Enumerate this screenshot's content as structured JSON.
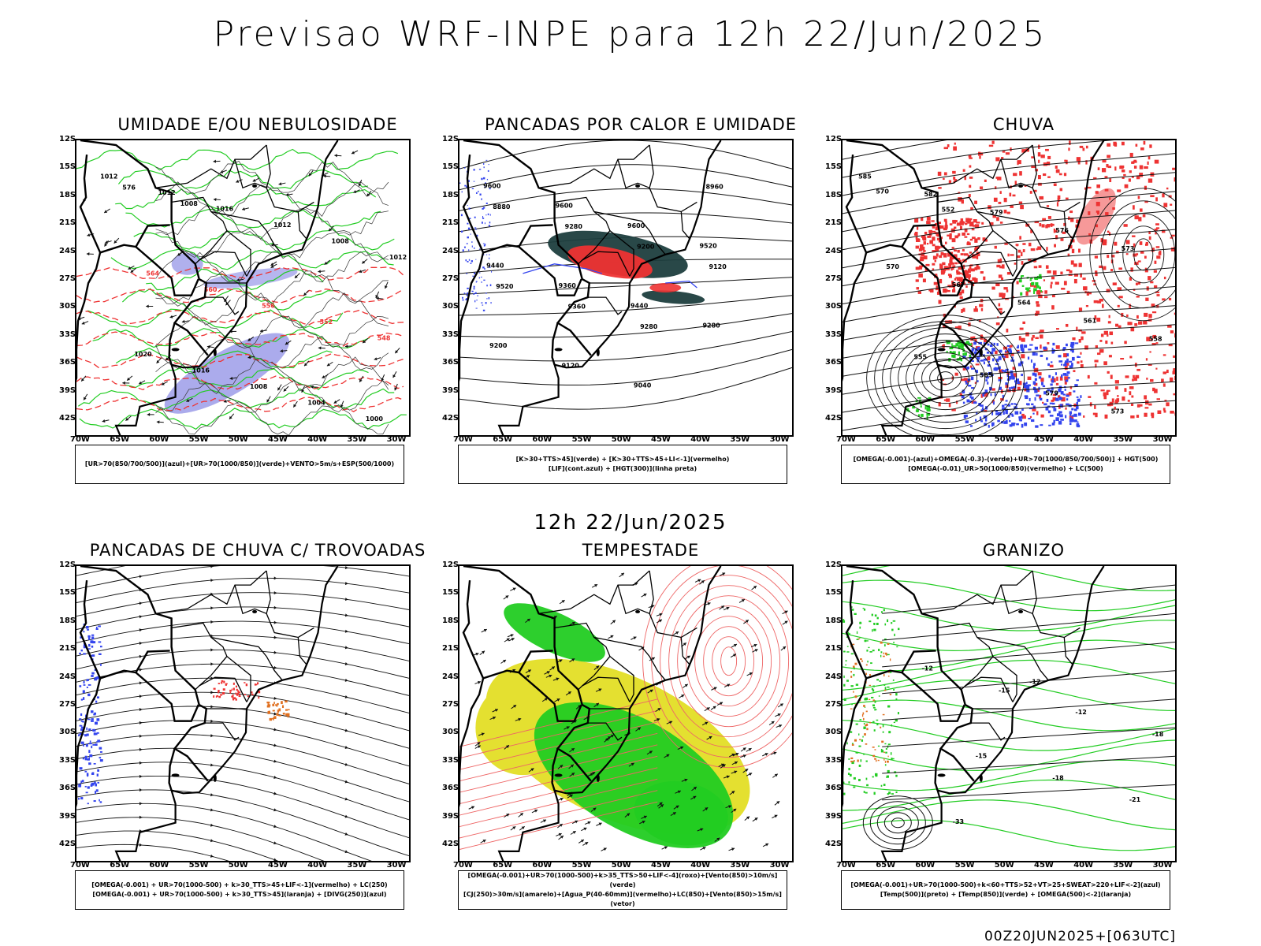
{
  "title": "Previsao WRF-INPE  para 12h 22/Jun/2025",
  "subtitle": "12h 22/Jun/2025",
  "footer": "00Z20JUN2025+[063UTC]",
  "lat_labels": [
    "12S",
    "15S",
    "18S",
    "21S",
    "24S",
    "27S",
    "30S",
    "33S",
    "36S",
    "39S",
    "42S"
  ],
  "lon_labels": [
    "70W",
    "65W",
    "60W",
    "55W",
    "50W",
    "45W",
    "40W",
    "35W",
    "30W"
  ],
  "panels": [
    {
      "title": "UMIDADE E/OU NEBULOSIDADE",
      "legend": [
        "[UR>70(850/700/500)](azul)+[UR>70(1000/850)](verde)+VENTO>5m/s+ESP(500/1000)"
      ]
    },
    {
      "title": "PANCADAS POR CALOR E UMIDADE",
      "legend": [
        "[K>30+TTS>45](verde) + [K>30+TTS>45+LI<-1](vermelho)",
        "[LIF](cont.azul) + [HGT(300)](linha preta)"
      ]
    },
    {
      "title": "CHUVA",
      "legend": [
        "[OMEGA(-0.001)-(azul)+OMEGA(-0.3)-(verde)+UR>70(1000/850/700/500)] + HGT(500)",
        "[OMEGA(-0.01)_UR>50(1000/850)(vermelho) + LC(500)"
      ]
    },
    {
      "title": "PANCADAS DE CHUVA C/ TROVOADAS",
      "legend": [
        "[OMEGA(-0.001) + UR>70(1000-500) + k>30_TTS>45+LIF<-1](vermelho) + LC(250)",
        "[OMEGA(-0.001) + UR>70(1000-500) + k>30_TTS>45](laranja) + [DIVG(250)](azul)"
      ]
    },
    {
      "title": "TEMPESTADE",
      "legend": [
        "[OMEGA(-0.001)+UR>70(1000-500)+k>35_TTS>50+LIF<-4](roxo)+[Vento(850)>10m/s](verde)",
        "[CJ(250)>30m/s](amarelo)+[Agua_P(40-60mm)](vermelho)+LC(850)+[Vento(850)>15m/s](vetor)"
      ]
    },
    {
      "title": "GRANIZO",
      "legend": [
        "[OMEGA(-0.001)+UR>70(1000-500)+k<60+TTS>52+VT>25+SWEAT>220+LIF<-2](azul)",
        "[Temp(500)](preto) + [Temp(850)](verde) + [OMEGA(500)<-2](laranja)"
      ]
    }
  ],
  "contour_labels": {
    "p1": [
      "1012",
      "1012",
      "1016",
      "1012",
      "1008",
      "1012",
      "564",
      "560",
      "556",
      "552",
      "548",
      "1020",
      "1016",
      "1008",
      "1004",
      "1000",
      "576",
      "1008"
    ],
    "p2": [
      "9600",
      "9600",
      "9600",
      "9520",
      "9440",
      "9360",
      "9440",
      "9280",
      "9200",
      "9120",
      "9040",
      "8960",
      "8880",
      "9280",
      "9200",
      "9120",
      "9520",
      "9360",
      "9280"
    ],
    "p3": [
      "585",
      "582",
      "579",
      "576",
      "573",
      "570",
      "567",
      "564",
      "561",
      "558",
      "555",
      "585",
      "579",
      "573",
      "570",
      "552"
    ],
    "p6": [
      "-12",
      "-15",
      "-12",
      "-18",
      "-15",
      "-18",
      "-21",
      "-33",
      "-12"
    ]
  },
  "colors": {
    "green": "#22cc22",
    "red": "#ee3333",
    "blue": "#3344ee",
    "lavender": "#8f8fe6",
    "dark": "#1e3e3e",
    "yellow": "#e4e030",
    "orange": "#e07020"
  }
}
